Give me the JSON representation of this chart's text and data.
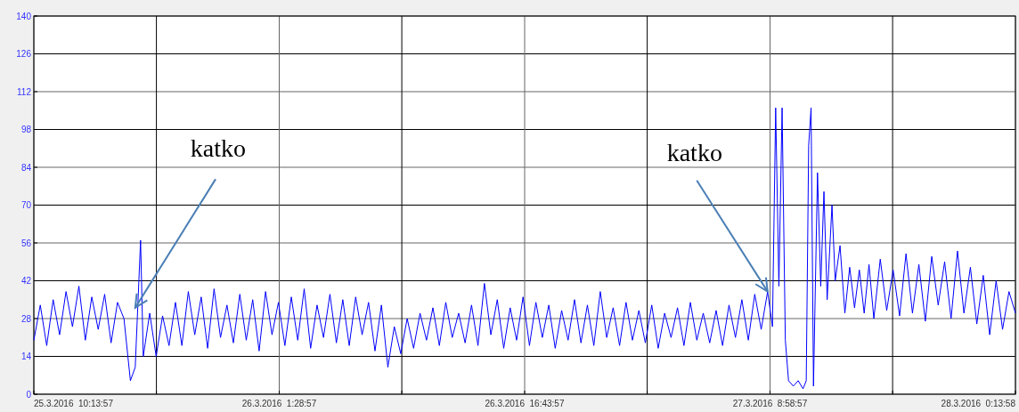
{
  "chart_data": {
    "type": "line",
    "x": [
      "2016-03-25T09:14",
      "2016-03-25T09:38",
      "2016-03-25T10:02",
      "2016-03-25T10:26",
      "2016-03-25T10:50",
      "2016-03-25T11:14",
      "2016-03-25T11:38",
      "2016-03-25T12:02",
      "2016-03-25T12:26",
      "2016-03-25T12:50",
      "2016-03-25T13:14",
      "2016-03-25T13:38",
      "2016-03-25T14:02",
      "2016-03-25T14:26",
      "2016-03-25T14:50",
      "2016-03-25T15:14",
      "2016-03-25T15:32",
      "2016-03-25T15:52",
      "2016-03-25T16:02",
      "2016-03-25T16:26",
      "2016-03-25T16:50",
      "2016-03-25T17:14",
      "2016-03-25T17:38",
      "2016-03-25T18:02",
      "2016-03-25T18:26",
      "2016-03-25T18:50",
      "2016-03-25T19:14",
      "2016-03-25T19:38",
      "2016-03-25T20:02",
      "2016-03-25T20:26",
      "2016-03-25T20:50",
      "2016-03-25T21:14",
      "2016-03-25T21:38",
      "2016-03-25T22:02",
      "2016-03-25T22:26",
      "2016-03-25T22:50",
      "2016-03-25T23:14",
      "2016-03-25T23:38",
      "2016-03-26T00:02",
      "2016-03-26T00:26",
      "2016-03-26T00:50",
      "2016-03-26T01:14",
      "2016-03-26T01:38",
      "2016-03-26T02:02",
      "2016-03-26T02:26",
      "2016-03-26T02:50",
      "2016-03-26T03:14",
      "2016-03-26T03:38",
      "2016-03-26T04:02",
      "2016-03-26T04:26",
      "2016-03-26T04:50",
      "2016-03-26T05:14",
      "2016-03-26T05:38",
      "2016-03-26T06:02",
      "2016-03-26T06:26",
      "2016-03-26T06:50",
      "2016-03-26T07:14",
      "2016-03-26T07:38",
      "2016-03-26T08:02",
      "2016-03-26T08:26",
      "2016-03-26T08:50",
      "2016-03-26T09:14",
      "2016-03-26T09:38",
      "2016-03-26T10:02",
      "2016-03-26T10:26",
      "2016-03-26T10:50",
      "2016-03-26T11:14",
      "2016-03-26T11:38",
      "2016-03-26T12:02",
      "2016-03-26T12:26",
      "2016-03-26T12:50",
      "2016-03-26T13:14",
      "2016-03-26T13:38",
      "2016-03-26T14:02",
      "2016-03-26T14:26",
      "2016-03-26T14:50",
      "2016-03-26T15:14",
      "2016-03-26T15:38",
      "2016-03-26T16:02",
      "2016-03-26T16:26",
      "2016-03-26T16:50",
      "2016-03-26T17:14",
      "2016-03-26T17:38",
      "2016-03-26T18:02",
      "2016-03-26T18:26",
      "2016-03-26T18:50",
      "2016-03-26T19:14",
      "2016-03-26T19:38",
      "2016-03-26T20:02",
      "2016-03-26T20:26",
      "2016-03-26T20:50",
      "2016-03-26T21:14",
      "2016-03-26T21:38",
      "2016-03-26T22:02",
      "2016-03-26T22:26",
      "2016-03-26T22:50",
      "2016-03-26T23:14",
      "2016-03-26T23:38",
      "2016-03-27T00:02",
      "2016-03-27T00:26",
      "2016-03-27T00:50",
      "2016-03-27T01:14",
      "2016-03-27T01:38",
      "2016-03-27T02:02",
      "2016-03-27T02:26",
      "2016-03-27T02:50",
      "2016-03-27T03:14",
      "2016-03-27T03:38",
      "2016-03-27T04:02",
      "2016-03-27T04:26",
      "2016-03-27T04:50",
      "2016-03-27T05:14",
      "2016-03-27T05:38",
      "2016-03-27T06:02",
      "2016-03-27T06:26",
      "2016-03-27T06:50",
      "2016-03-27T07:08",
      "2016-03-27T07:20",
      "2016-03-27T07:32",
      "2016-03-27T07:44",
      "2016-03-27T07:56",
      "2016-03-27T08:08",
      "2016-03-27T08:26",
      "2016-03-27T08:44",
      "2016-03-27T09:02",
      "2016-03-27T09:14",
      "2016-03-27T09:23",
      "2016-03-27T09:32",
      "2016-03-27T09:41",
      "2016-03-27T09:56",
      "2016-03-27T10:08",
      "2016-03-27T10:20",
      "2016-03-27T10:32",
      "2016-03-27T10:50",
      "2016-03-27T11:02",
      "2016-03-27T11:20",
      "2016-03-27T11:38",
      "2016-03-27T11:56",
      "2016-03-27T12:14",
      "2016-03-27T12:32",
      "2016-03-27T12:50",
      "2016-03-27T13:08",
      "2016-03-27T13:26",
      "2016-03-27T13:50",
      "2016-03-27T14:14",
      "2016-03-27T14:38",
      "2016-03-27T15:02",
      "2016-03-27T15:26",
      "2016-03-27T15:50",
      "2016-03-27T16:14",
      "2016-03-27T16:38",
      "2016-03-27T17:02",
      "2016-03-27T17:26",
      "2016-03-27T17:50",
      "2016-03-27T18:14",
      "2016-03-27T18:38",
      "2016-03-27T19:02",
      "2016-03-27T19:26",
      "2016-03-27T19:50",
      "2016-03-27T20:14",
      "2016-03-27T20:38",
      "2016-03-27T21:02",
      "2016-03-27T21:26",
      "2016-03-27T21:50",
      "2016-03-27T22:14"
    ],
    "series": [
      {
        "color": "#0000ff",
        "values": [
          20,
          33,
          18,
          35,
          22,
          38,
          25,
          40,
          20,
          36,
          24,
          37,
          19,
          34,
          28,
          5,
          10,
          57,
          14,
          30,
          14,
          29,
          18,
          34,
          18,
          38,
          22,
          36,
          17,
          39,
          21,
          33,
          19,
          37,
          20,
          35,
          16,
          38,
          22,
          34,
          18,
          36,
          20,
          39,
          17,
          33,
          21,
          37,
          19,
          35,
          18,
          36,
          22,
          34,
          16,
          33,
          10,
          25,
          15,
          28,
          17,
          30,
          20,
          32,
          18,
          34,
          21,
          30,
          19,
          33,
          18,
          41,
          22,
          35,
          17,
          32,
          20,
          36,
          18,
          34,
          21,
          33,
          17,
          31,
          20,
          35,
          19,
          33,
          18,
          38,
          21,
          32,
          18,
          34,
          20,
          31,
          19,
          33,
          17,
          30,
          21,
          32,
          18,
          34,
          20,
          30,
          19,
          31,
          18,
          33,
          21,
          35,
          20,
          37,
          24,
          38,
          25,
          106,
          40,
          106,
          20,
          5,
          3,
          5,
          2,
          5,
          92,
          106,
          3,
          82,
          40,
          75,
          35,
          70,
          42,
          55,
          30,
          47,
          32,
          46,
          30,
          48,
          28,
          50,
          31,
          46,
          29,
          52,
          30,
          48,
          27,
          51,
          33,
          49,
          28,
          53,
          30,
          47,
          26,
          44,
          22,
          42,
          24,
          38,
          30
        ]
      }
    ],
    "xlim": [
      "2016-03-25T09:14",
      "2016-03-27T22:14"
    ],
    "xticks": [
      {
        "value": "2016-03-25T09:14",
        "label": "25.3.2016  10:13:57"
      },
      {
        "value": "2016-03-25T16:51",
        "label": null
      },
      {
        "value": "2016-03-26T00:29",
        "label": "26.3.2016  1:28:57"
      },
      {
        "value": "2016-03-26T08:06",
        "label": null
      },
      {
        "value": "2016-03-26T15:44",
        "label": "26.3.2016  16:43:57"
      },
      {
        "value": "2016-03-26T23:21",
        "label": null
      },
      {
        "value": "2016-03-27T06:59",
        "label": "27.3.2016  8:58:57"
      },
      {
        "value": "2016-03-27T14:36",
        "label": null
      },
      {
        "value": "2016-03-27T22:14",
        "label": "28.3.2016  0:13:58"
      }
    ],
    "ylim": [
      0,
      140
    ],
    "yticks": [
      0,
      14,
      28,
      42,
      56,
      70,
      84,
      98,
      112,
      126,
      140
    ],
    "grid": true,
    "marker": "none",
    "line_style": "solid",
    "annotations": [
      {
        "text": "katko",
        "x": "2016-03-25T15:32",
        "y": 32
      },
      {
        "text": "katko",
        "x": "2016-03-27T06:50",
        "y": 38
      }
    ]
  }
}
